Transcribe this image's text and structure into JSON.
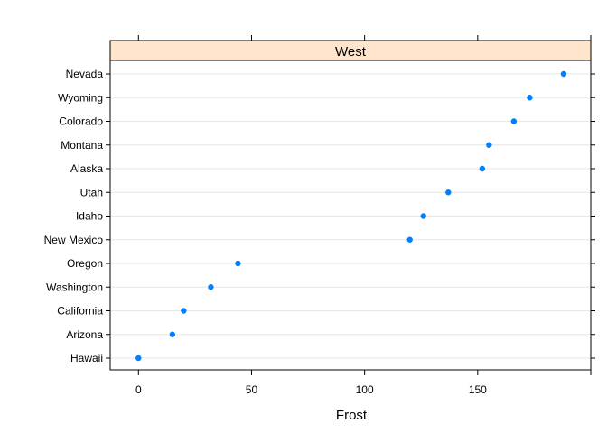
{
  "chart_data": {
    "type": "scatter",
    "panel": "West",
    "xlabel": "Frost",
    "xlim": [
      -12.5,
      200
    ],
    "xticks": [
      0,
      50,
      100,
      150
    ],
    "grid": "horizontal",
    "categories": [
      "Hawaii",
      "Arizona",
      "California",
      "Washington",
      "Oregon",
      "New Mexico",
      "Idaho",
      "Utah",
      "Alaska",
      "Montana",
      "Colorado",
      "Wyoming",
      "Nevada"
    ],
    "values": [
      0,
      15,
      20,
      32,
      44,
      120,
      126,
      137,
      152,
      155,
      166,
      173,
      188
    ]
  },
  "colors": {
    "point": "#0080ff",
    "strip_fill": "#ffe5cc",
    "grid": "#e6e6e6",
    "axis": "#000000"
  }
}
